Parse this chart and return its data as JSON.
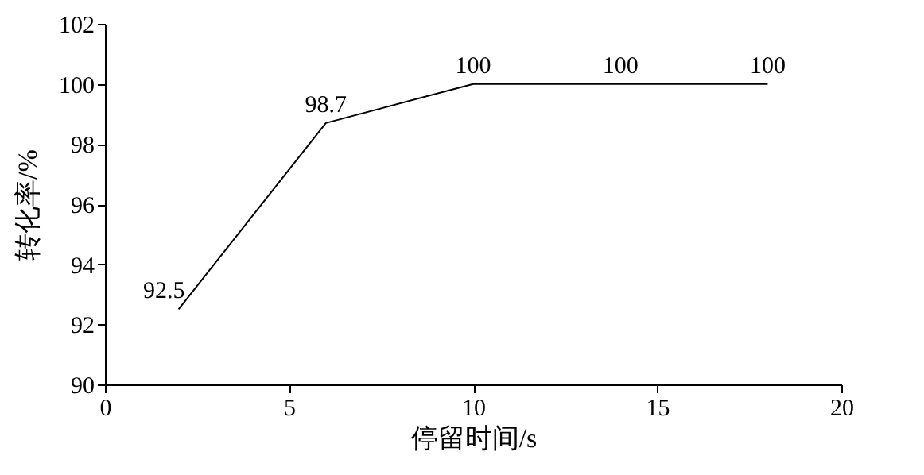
{
  "chart_data": {
    "type": "line",
    "xlabel": "停留时间/s",
    "ylabel": "转化率/%",
    "x": [
      2,
      6,
      10,
      14,
      18
    ],
    "series": [
      {
        "color": "#000000",
        "values": [
          92.5,
          98.7,
          100,
          100,
          100
        ]
      }
    ],
    "xlim": [
      0,
      20
    ],
    "xticks": [
      0,
      5,
      10,
      15,
      20
    ],
    "ylim": [
      90,
      102
    ],
    "yticks": [
      90,
      92,
      94,
      96,
      98,
      100,
      102
    ],
    "grid": false,
    "legend": false,
    "marker": "none",
    "line_style": "solid",
    "data_labels": true
  }
}
